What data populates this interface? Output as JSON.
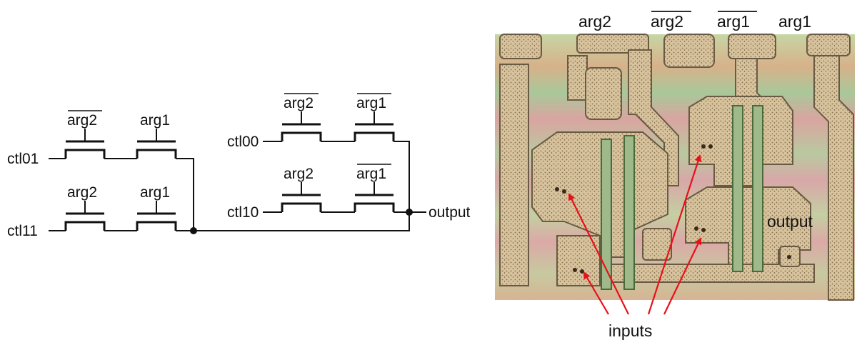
{
  "schematic": {
    "arg1": "arg1",
    "arg2": "arg2",
    "ctl01": "ctl01",
    "ctl11": "ctl11",
    "ctl00": "ctl00",
    "ctl10": "ctl10",
    "output": "output"
  },
  "die_photo": {
    "labels": {
      "arg2": "arg2",
      "arg2_bar": "arg2",
      "arg1_bar": "arg1",
      "arg1": "arg1"
    },
    "output": "output",
    "inputs": "inputs"
  },
  "colors": {
    "arrow": "#e8101a",
    "wire": "#111111"
  }
}
